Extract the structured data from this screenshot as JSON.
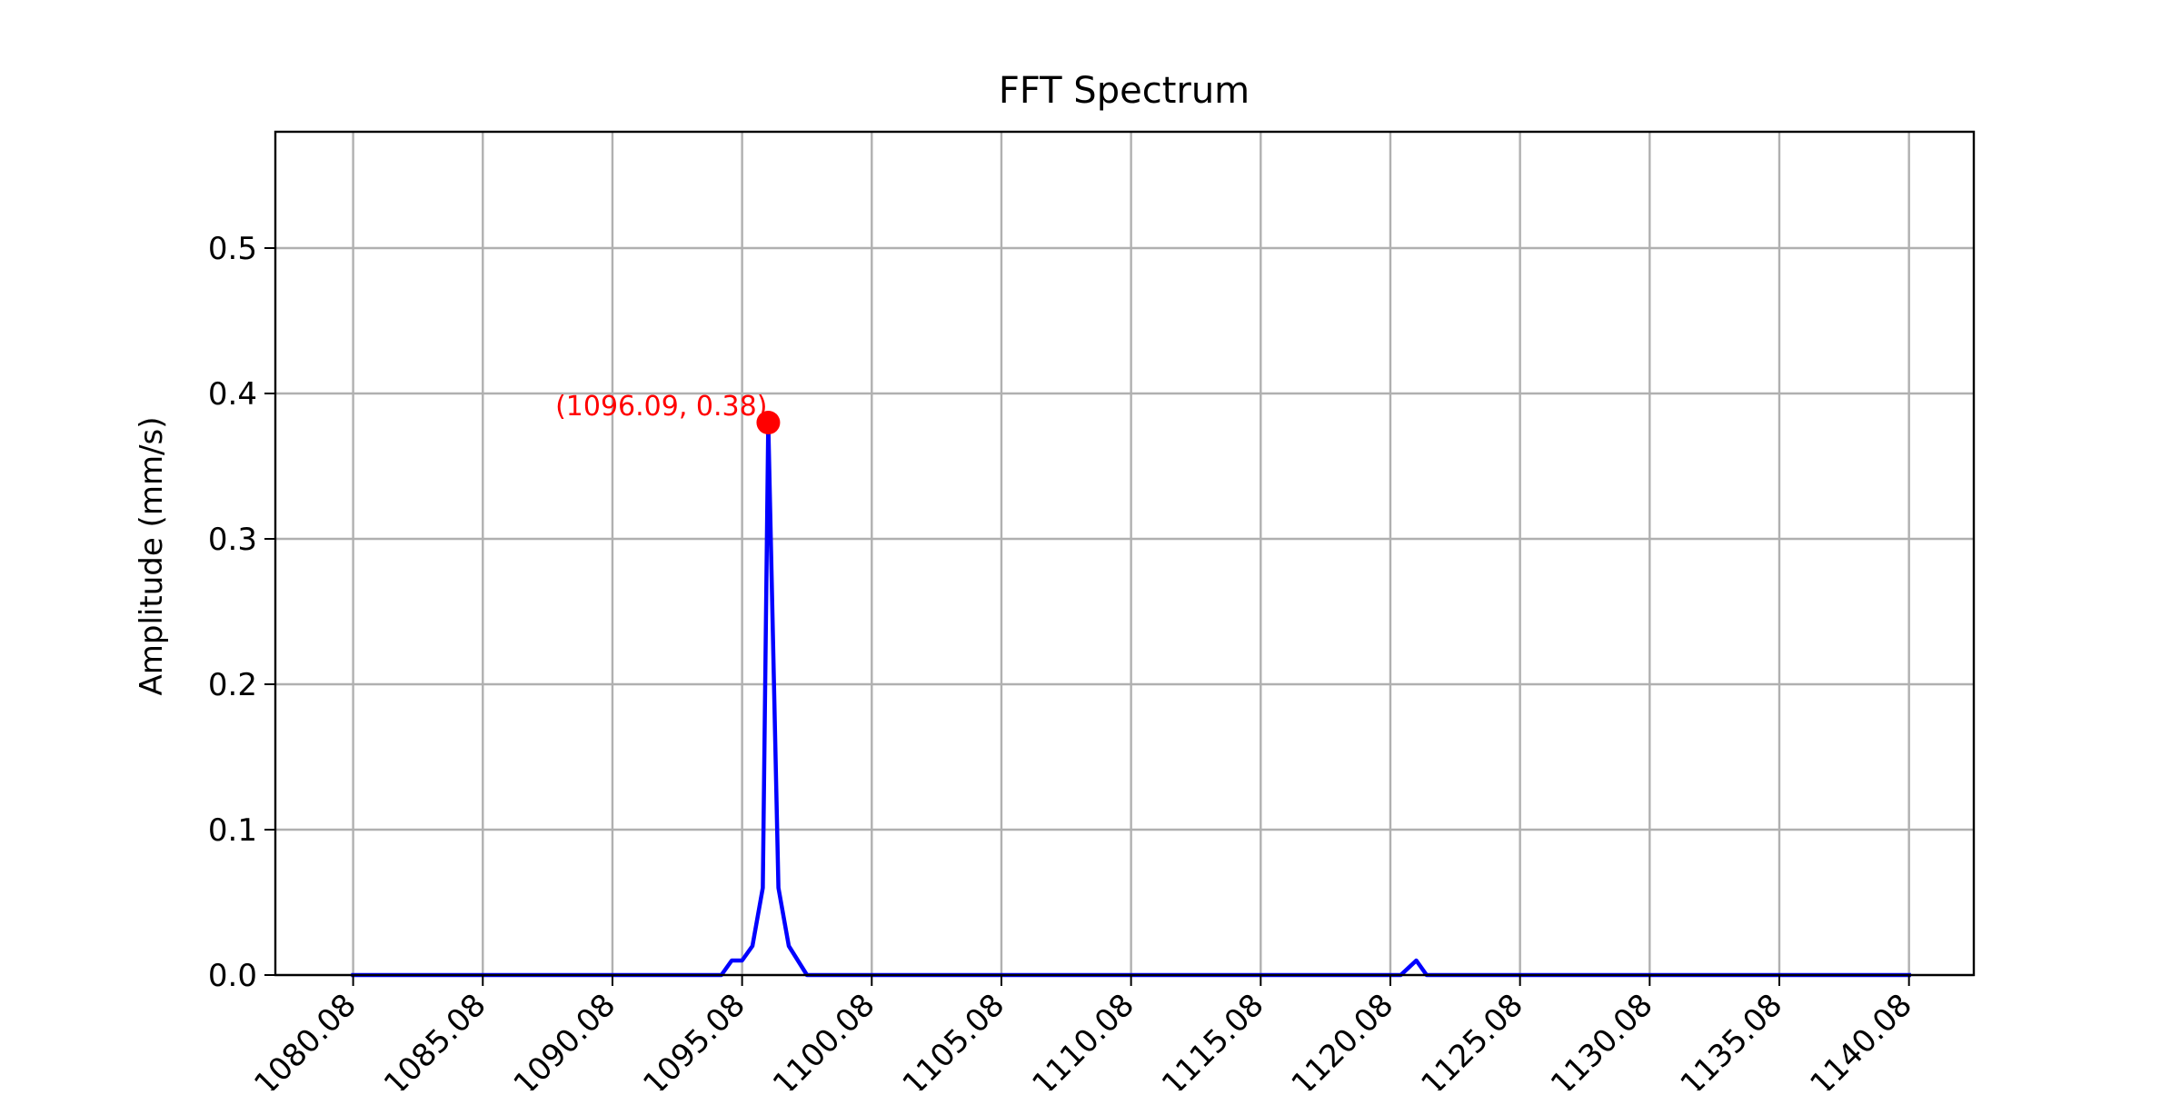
{
  "chart_data": {
    "type": "line",
    "title": "FFT Spectrum",
    "xlabel": "",
    "ylabel": "Amplitude (mm/s)",
    "xlim": [
      1077.08,
      1142.58
    ],
    "ylim": [
      0.0,
      0.58
    ],
    "x_ticks": [
      1080.08,
      1085.08,
      1090.08,
      1095.08,
      1100.08,
      1105.08,
      1110.08,
      1115.08,
      1120.08,
      1125.08,
      1130.08,
      1135.08,
      1140.08
    ],
    "x_tick_labels": [
      "1080.08",
      "1085.08",
      "1090.08",
      "1095.08",
      "1100.08",
      "1105.08",
      "1110.08",
      "1115.08",
      "1120.08",
      "1125.08",
      "1130.08",
      "1135.08",
      "1140.08"
    ],
    "y_ticks": [
      0.0,
      0.1,
      0.2,
      0.3,
      0.4,
      0.5
    ],
    "y_tick_labels": [
      "0.0",
      "0.1",
      "0.2",
      "0.3",
      "0.4",
      "0.5"
    ],
    "grid": true,
    "series": [
      {
        "color": "#0000ff",
        "x": [
          1080.08,
          1094.28,
          1094.68,
          1095.08,
          1095.48,
          1095.88,
          1096.09,
          1096.48,
          1096.88,
          1097.58,
          1120.48,
          1121.08,
          1121.48,
          1140.08
        ],
        "y": [
          0.0,
          0.0,
          0.01,
          0.01,
          0.02,
          0.06,
          0.38,
          0.06,
          0.02,
          0.0,
          0.0,
          0.01,
          0.0,
          0.0
        ]
      }
    ],
    "peak": {
      "x": 1096.09,
      "y": 0.38,
      "label": "(1096.09, 0.38)",
      "color": "#ff0000"
    }
  }
}
